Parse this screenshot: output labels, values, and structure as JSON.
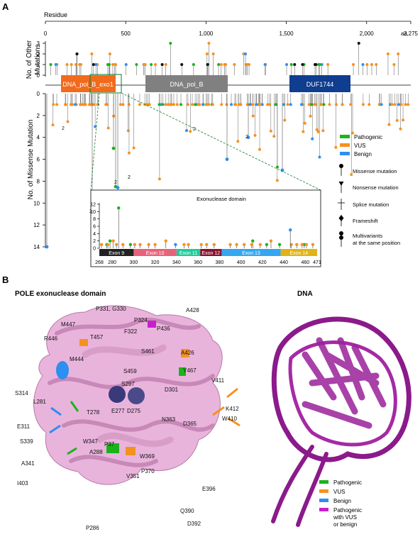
{
  "panel_a": {
    "letter": "A",
    "residue_label": "Residue",
    "aa_label": "aa",
    "top_axis_ticks": [
      "0",
      "500",
      "1,000",
      "1,500",
      "2,000",
      "2,275"
    ],
    "upper_ylabel_1": "No. of Other",
    "upper_ylabel_2": "Mutations",
    "upper_yticks": [
      "3",
      "2",
      "1",
      "0"
    ],
    "lower_ylabel": "No. of Missense Mutation",
    "lower_yticks": [
      "0",
      "2",
      "4",
      "6",
      "8",
      "10",
      "12",
      "14"
    ],
    "domains": [
      "DNA_pol_B_exo1",
      "DNA_pol_B",
      "DUF1744"
    ],
    "legend_colors": [
      {
        "label": "Pathogenic",
        "color": "#1bb31b"
      },
      {
        "label": "VUS",
        "color": "#f5921e"
      },
      {
        "label": "Benign",
        "color": "#2d8ff0"
      }
    ],
    "legend_markers": [
      "Missense mutation",
      "Nonsense mutation",
      "Splice mutation",
      "Frameshift",
      "Multivariants\nat the same position"
    ],
    "callout_numbers": [
      "2",
      "2",
      "2",
      "2",
      "2",
      "2"
    ],
    "inset": {
      "title": "Exonuclease domain",
      "yticks": [
        "0",
        "2",
        "4",
        "6",
        "8",
        "10",
        "12"
      ],
      "xticks": [
        "268",
        "280",
        "300",
        "320",
        "340",
        "360",
        "380",
        "400",
        "420",
        "440",
        "460",
        "471"
      ],
      "exons": [
        {
          "label": "Exon 9",
          "color": "#222222"
        },
        {
          "label": "Exon 10",
          "color": "#e8617a"
        },
        {
          "label": "Exon 11",
          "color": "#1fcc9a"
        },
        {
          "label": "Exon 12",
          "color": "#8a1230"
        },
        {
          "label": "Exon 13",
          "color": "#35a6ef"
        },
        {
          "label": "Exon 14",
          "color": "#e0b418"
        }
      ]
    }
  },
  "chart_data": {
    "type": "scatter",
    "title": "Exonuclease domain",
    "x_range": [
      268,
      471
    ],
    "ylim": [
      0,
      12
    ],
    "xticks": [
      268,
      280,
      300,
      320,
      340,
      360,
      380,
      400,
      420,
      440,
      460,
      471
    ],
    "series": [
      {
        "name": "Pathogenic",
        "x": [
          275,
          278,
          286,
          297,
          411,
          424,
          436,
          459
        ],
        "y": [
          1,
          2,
          11,
          1,
          2,
          1,
          1,
          1
        ]
      },
      {
        "name": "VUS",
        "x": [
          270,
          276,
          281,
          284,
          290,
          301,
          306,
          314,
          320,
          330,
          347,
          351,
          363,
          368,
          375,
          390,
          396,
          403,
          410,
          418,
          428,
          447,
          452,
          457,
          461,
          467
        ],
        "y": [
          1,
          1,
          2,
          1,
          1,
          1,
          1,
          1,
          1,
          2,
          1,
          1,
          1,
          1,
          1,
          1,
          1,
          1,
          1,
          1,
          2,
          1,
          1,
          1,
          1,
          1
        ]
      },
      {
        "name": "Benign",
        "x": [
          339,
          446
        ],
        "y": [
          1,
          5
        ]
      }
    ]
  },
  "panel_b": {
    "letter": "B",
    "title_left": "POLE exonuclease domain",
    "title_right": "DNA",
    "residue_labels": [
      "P331, G330",
      "A428",
      "P324",
      "M447",
      "T457",
      "F322",
      "P436",
      "R446",
      "S461",
      "M444",
      "S459",
      "A426",
      "Y467",
      "S314",
      "S297",
      "D301",
      "V411",
      "L281",
      "T278",
      "E277",
      "D275",
      "K412",
      "E311",
      "W410",
      "N363",
      "S339",
      "A341",
      "D365",
      "I403",
      "W347",
      "A288",
      "P37",
      "W369",
      "P370",
      "E396",
      "Q390",
      "V351",
      "P286",
      "D392"
    ],
    "legend": [
      {
        "label": "Pathogenic",
        "color": "#1bb31b"
      },
      {
        "label": "VUS",
        "color": "#f5921e"
      },
      {
        "label": "Benign",
        "color": "#2d8ff0"
      },
      {
        "label": "Pathogenic\nwith VUS\nor benign",
        "color": "#c81ecd"
      }
    ]
  }
}
